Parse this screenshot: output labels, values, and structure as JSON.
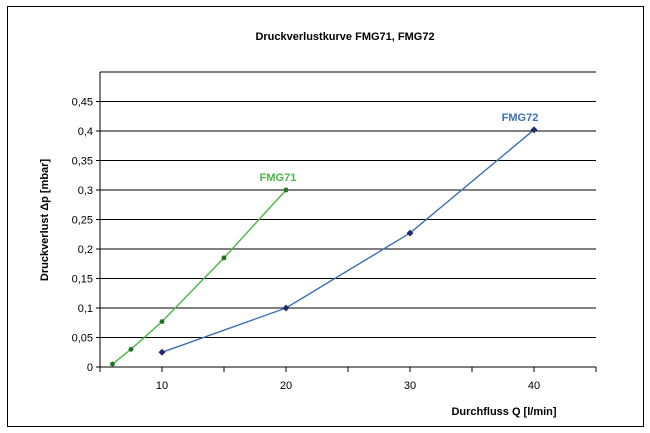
{
  "chart_data": {
    "type": "line",
    "title": "Druckverlustkurve FMG71, FMG72",
    "xlabel": "Durchfluss Q [l/min]",
    "ylabel": "Druckverlust Δp [mbar]",
    "xlim": [
      5,
      45
    ],
    "ylim": [
      0,
      0.5
    ],
    "x_ticks": [
      10,
      20,
      30,
      40
    ],
    "y_ticks": [
      0,
      0.05,
      0.1,
      0.15,
      0.2,
      0.25,
      0.3,
      0.35,
      0.4,
      0.45
    ],
    "x_tick_labels": [
      "10",
      "20",
      "30",
      "40"
    ],
    "y_tick_labels": [
      "0",
      "0,05",
      "0,1",
      "0,15",
      "0,2",
      "0,25",
      "0,3",
      "0,35",
      "0,4",
      "0,45"
    ],
    "grid": "horizontal",
    "legend": "inline-labels",
    "series": [
      {
        "name": "FMG71",
        "color": "#4cb848",
        "marker": "star",
        "x": [
          6,
          7.5,
          10,
          15,
          20
        ],
        "y": [
          0.005,
          0.03,
          0.077,
          0.185,
          0.3
        ]
      },
      {
        "name": "FMG72",
        "color": "#3d6fb6",
        "marker": "diamond",
        "x": [
          10,
          20,
          30,
          40
        ],
        "y": [
          0.025,
          0.1,
          0.227,
          0.402
        ]
      }
    ]
  }
}
